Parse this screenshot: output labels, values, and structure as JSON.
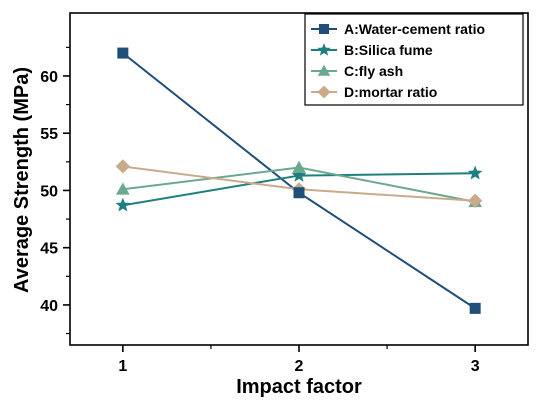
{
  "chart_data": {
    "type": "line",
    "xlabel": "Impact factor",
    "ylabel": "Average Strength (MPa)",
    "x": [
      1,
      2,
      3
    ],
    "xlim": [
      0.7,
      3.3
    ],
    "ylim": [
      36.5,
      65.5
    ],
    "xticks": [
      1,
      2,
      3
    ],
    "yticks": [
      40,
      45,
      50,
      55,
      60
    ],
    "grid": false,
    "legend_position": "top-right",
    "series": [
      {
        "name": "A:Water-cement ratio",
        "values": [
          62.0,
          49.8,
          39.7
        ],
        "color": "#1f4e79",
        "marker": "square"
      },
      {
        "name": "B:Silica fume",
        "values": [
          48.7,
          51.3,
          51.5
        ],
        "color": "#1f7f7f",
        "marker": "star"
      },
      {
        "name": "C:fly ash",
        "values": [
          50.1,
          52.0,
          49.0
        ],
        "color": "#6aa88f",
        "marker": "triangle"
      },
      {
        "name": "D:mortar ratio",
        "values": [
          52.1,
          50.1,
          49.1
        ],
        "color": "#c9ab8c",
        "marker": "diamond"
      }
    ]
  }
}
